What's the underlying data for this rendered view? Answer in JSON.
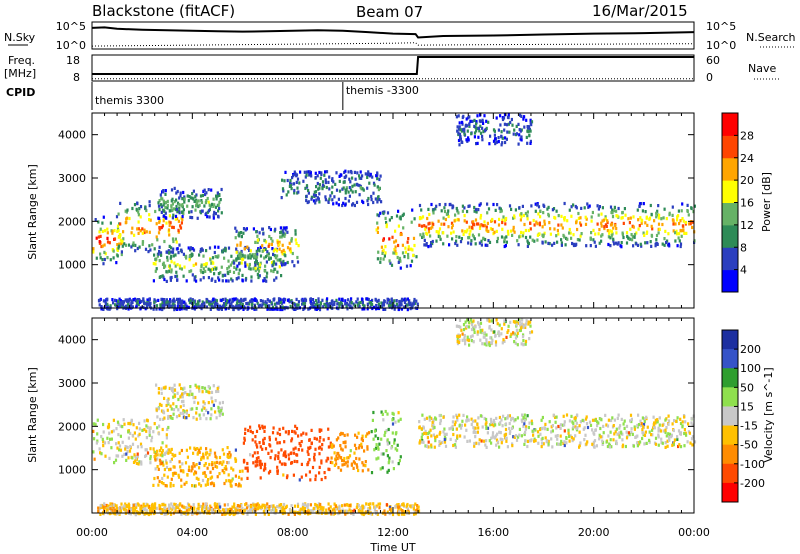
{
  "header": {
    "station": "Blackstone (fitACF)",
    "beam": "Beam 07",
    "date": "16/Mar/2015"
  },
  "colors": {
    "power_scale": [
      "#0000ff",
      "#2b3fbf",
      "#2e8b57",
      "#66b266",
      "#ffff00",
      "#ffa500",
      "#ff4500",
      "#ff0000"
    ],
    "velocity_scale": [
      "#1c2fa0",
      "#3553c8",
      "#2f9e2f",
      "#8fe04e",
      "#c8c8c8",
      "#ffc000",
      "#ff8c00",
      "#ff4a00",
      "#ff0000"
    ]
  },
  "chart_data": [
    {
      "type": "line",
      "panel": "noise",
      "left_label": "N.Sky",
      "right_label": "N.Search",
      "left_ticks": [
        "10^5",
        "10^0"
      ],
      "right_ticks": [
        "10^5",
        "10^0"
      ],
      "x_start_hour": 0,
      "x_end_hour": 24,
      "series": [
        {
          "name": "N.Sky",
          "style": "solid",
          "x": [
            0,
            0.5,
            1,
            2,
            3,
            4,
            5,
            6,
            7,
            8,
            9,
            10,
            11,
            12,
            12.9,
            13,
            14,
            16,
            18,
            20,
            22,
            23,
            24
          ],
          "y_log": [
            4.2,
            4.3,
            4.0,
            3.8,
            3.7,
            3.6,
            3.5,
            3.4,
            3.5,
            3.6,
            3.7,
            3.6,
            3.3,
            3.0,
            2.9,
            2.2,
            2.5,
            2.6,
            2.8,
            3.0,
            3.1,
            3.2,
            3.3
          ]
        },
        {
          "name": "N.Search",
          "style": "dotted",
          "x": [
            0,
            2,
            4,
            6,
            8,
            10,
            12,
            12.9,
            13,
            16,
            20,
            24
          ],
          "y_log": [
            0.4,
            0.5,
            0.6,
            0.7,
            0.8,
            0.9,
            1.0,
            1.1,
            0.6,
            0.7,
            0.8,
            0.9
          ]
        }
      ]
    },
    {
      "type": "line",
      "panel": "frequency",
      "left_label": "Freq.",
      "left_unit": "[MHz]",
      "right_label": "Nave",
      "left_ticks": [
        18,
        8
      ],
      "right_ticks": [
        60,
        0
      ],
      "series": [
        {
          "name": "Freq.",
          "style": "solid",
          "x": [
            0,
            12.95,
            13.0,
            24
          ],
          "y": [
            10.5,
            10.5,
            17.6,
            17.6
          ]
        },
        {
          "name": "Nave",
          "style": "dotted",
          "x": [
            0,
            24
          ],
          "y": [
            3,
            3
          ]
        }
      ]
    },
    {
      "type": "table",
      "panel": "cpid",
      "label": "CPID",
      "entries": [
        {
          "start_hour": 0,
          "text": "themis 3300"
        },
        {
          "start_hour": 10,
          "text": "themis -3300"
        }
      ]
    },
    {
      "type": "heatmap",
      "panel": "power",
      "ylabel": "Slant Range [km]",
      "ylim": [
        0,
        4500
      ],
      "yticks": [
        1000,
        2000,
        3000,
        4000
      ],
      "colorbar_label": "Power [dB]",
      "colorbar_ticks": [
        4,
        8,
        12,
        16,
        20,
        24,
        28
      ],
      "colorbar_range": [
        0,
        32
      ],
      "features": [
        {
          "t0": 0,
          "t1": 1.2,
          "r0": 1050,
          "r1": 2150,
          "peak": 28
        },
        {
          "t0": 1.0,
          "t1": 3.6,
          "r0": 1300,
          "r1": 2500,
          "peak": 26
        },
        {
          "t0": 2.6,
          "t1": 5.2,
          "r0": 2100,
          "r1": 2800,
          "peak": 14
        },
        {
          "t0": 2.4,
          "t1": 7.5,
          "r0": 650,
          "r1": 1450,
          "peak": 18
        },
        {
          "t0": 5.6,
          "t1": 8.2,
          "r0": 1000,
          "r1": 1900,
          "peak": 22
        },
        {
          "t0": 7.5,
          "t1": 11.5,
          "r0": 2400,
          "r1": 3200,
          "peak": 10
        },
        {
          "t0": 11.3,
          "t1": 12.9,
          "r0": 950,
          "r1": 2300,
          "peak": 27
        },
        {
          "t0": 13.0,
          "t1": 24,
          "r0": 1450,
          "r1": 2450,
          "peak": 25
        },
        {
          "t0": 14.5,
          "t1": 17.5,
          "r0": 3800,
          "r1": 4500,
          "peak": 8
        },
        {
          "t0": 0.2,
          "t1": 13,
          "r0": 0,
          "r1": 250,
          "peak": 8
        }
      ]
    },
    {
      "type": "heatmap",
      "panel": "velocity",
      "ylabel": "Slant Range [km]",
      "ylim": [
        0,
        4500
      ],
      "yticks": [
        1000,
        2000,
        3000,
        4000
      ],
      "colorbar_label": "Velocity [m s^-1]",
      "colorbar_ticks": [
        200,
        100,
        50,
        15,
        -15,
        -50,
        -100,
        -200
      ],
      "colorbar_range": [
        -250,
        250
      ],
      "x_tick_labels": [
        "00:00",
        "04:00",
        "08:00",
        "12:00",
        "16:00",
        "20:00",
        "00:00"
      ],
      "x_ticks_hours": [
        0,
        4,
        8,
        12,
        16,
        20,
        24
      ],
      "xlabel": "Time UT",
      "features": [
        {
          "t0": 0,
          "t1": 3.0,
          "r0": 1150,
          "r1": 2200,
          "vel": 0
        },
        {
          "t0": 2.5,
          "t1": 5.2,
          "r0": 2200,
          "r1": 3000,
          "vel": 0
        },
        {
          "t0": 2.4,
          "t1": 6.0,
          "r0": 650,
          "r1": 1550,
          "vel": -40
        },
        {
          "t0": 6.0,
          "t1": 9.5,
          "r0": 800,
          "r1": 2050,
          "vel": -130
        },
        {
          "t0": 9.5,
          "t1": 11.0,
          "r0": 1000,
          "r1": 1900,
          "vel": -70
        },
        {
          "t0": 11.1,
          "t1": 12.3,
          "r0": 900,
          "r1": 2400,
          "vel": 40
        },
        {
          "t0": 13.0,
          "t1": 24,
          "r0": 1550,
          "r1": 2300,
          "vel": 0
        },
        {
          "t0": 14.5,
          "t1": 17.5,
          "r0": 3900,
          "r1": 4500,
          "vel": 0
        },
        {
          "t0": 0.2,
          "t1": 13,
          "r0": 0,
          "r1": 250,
          "vel": -30
        }
      ]
    }
  ]
}
